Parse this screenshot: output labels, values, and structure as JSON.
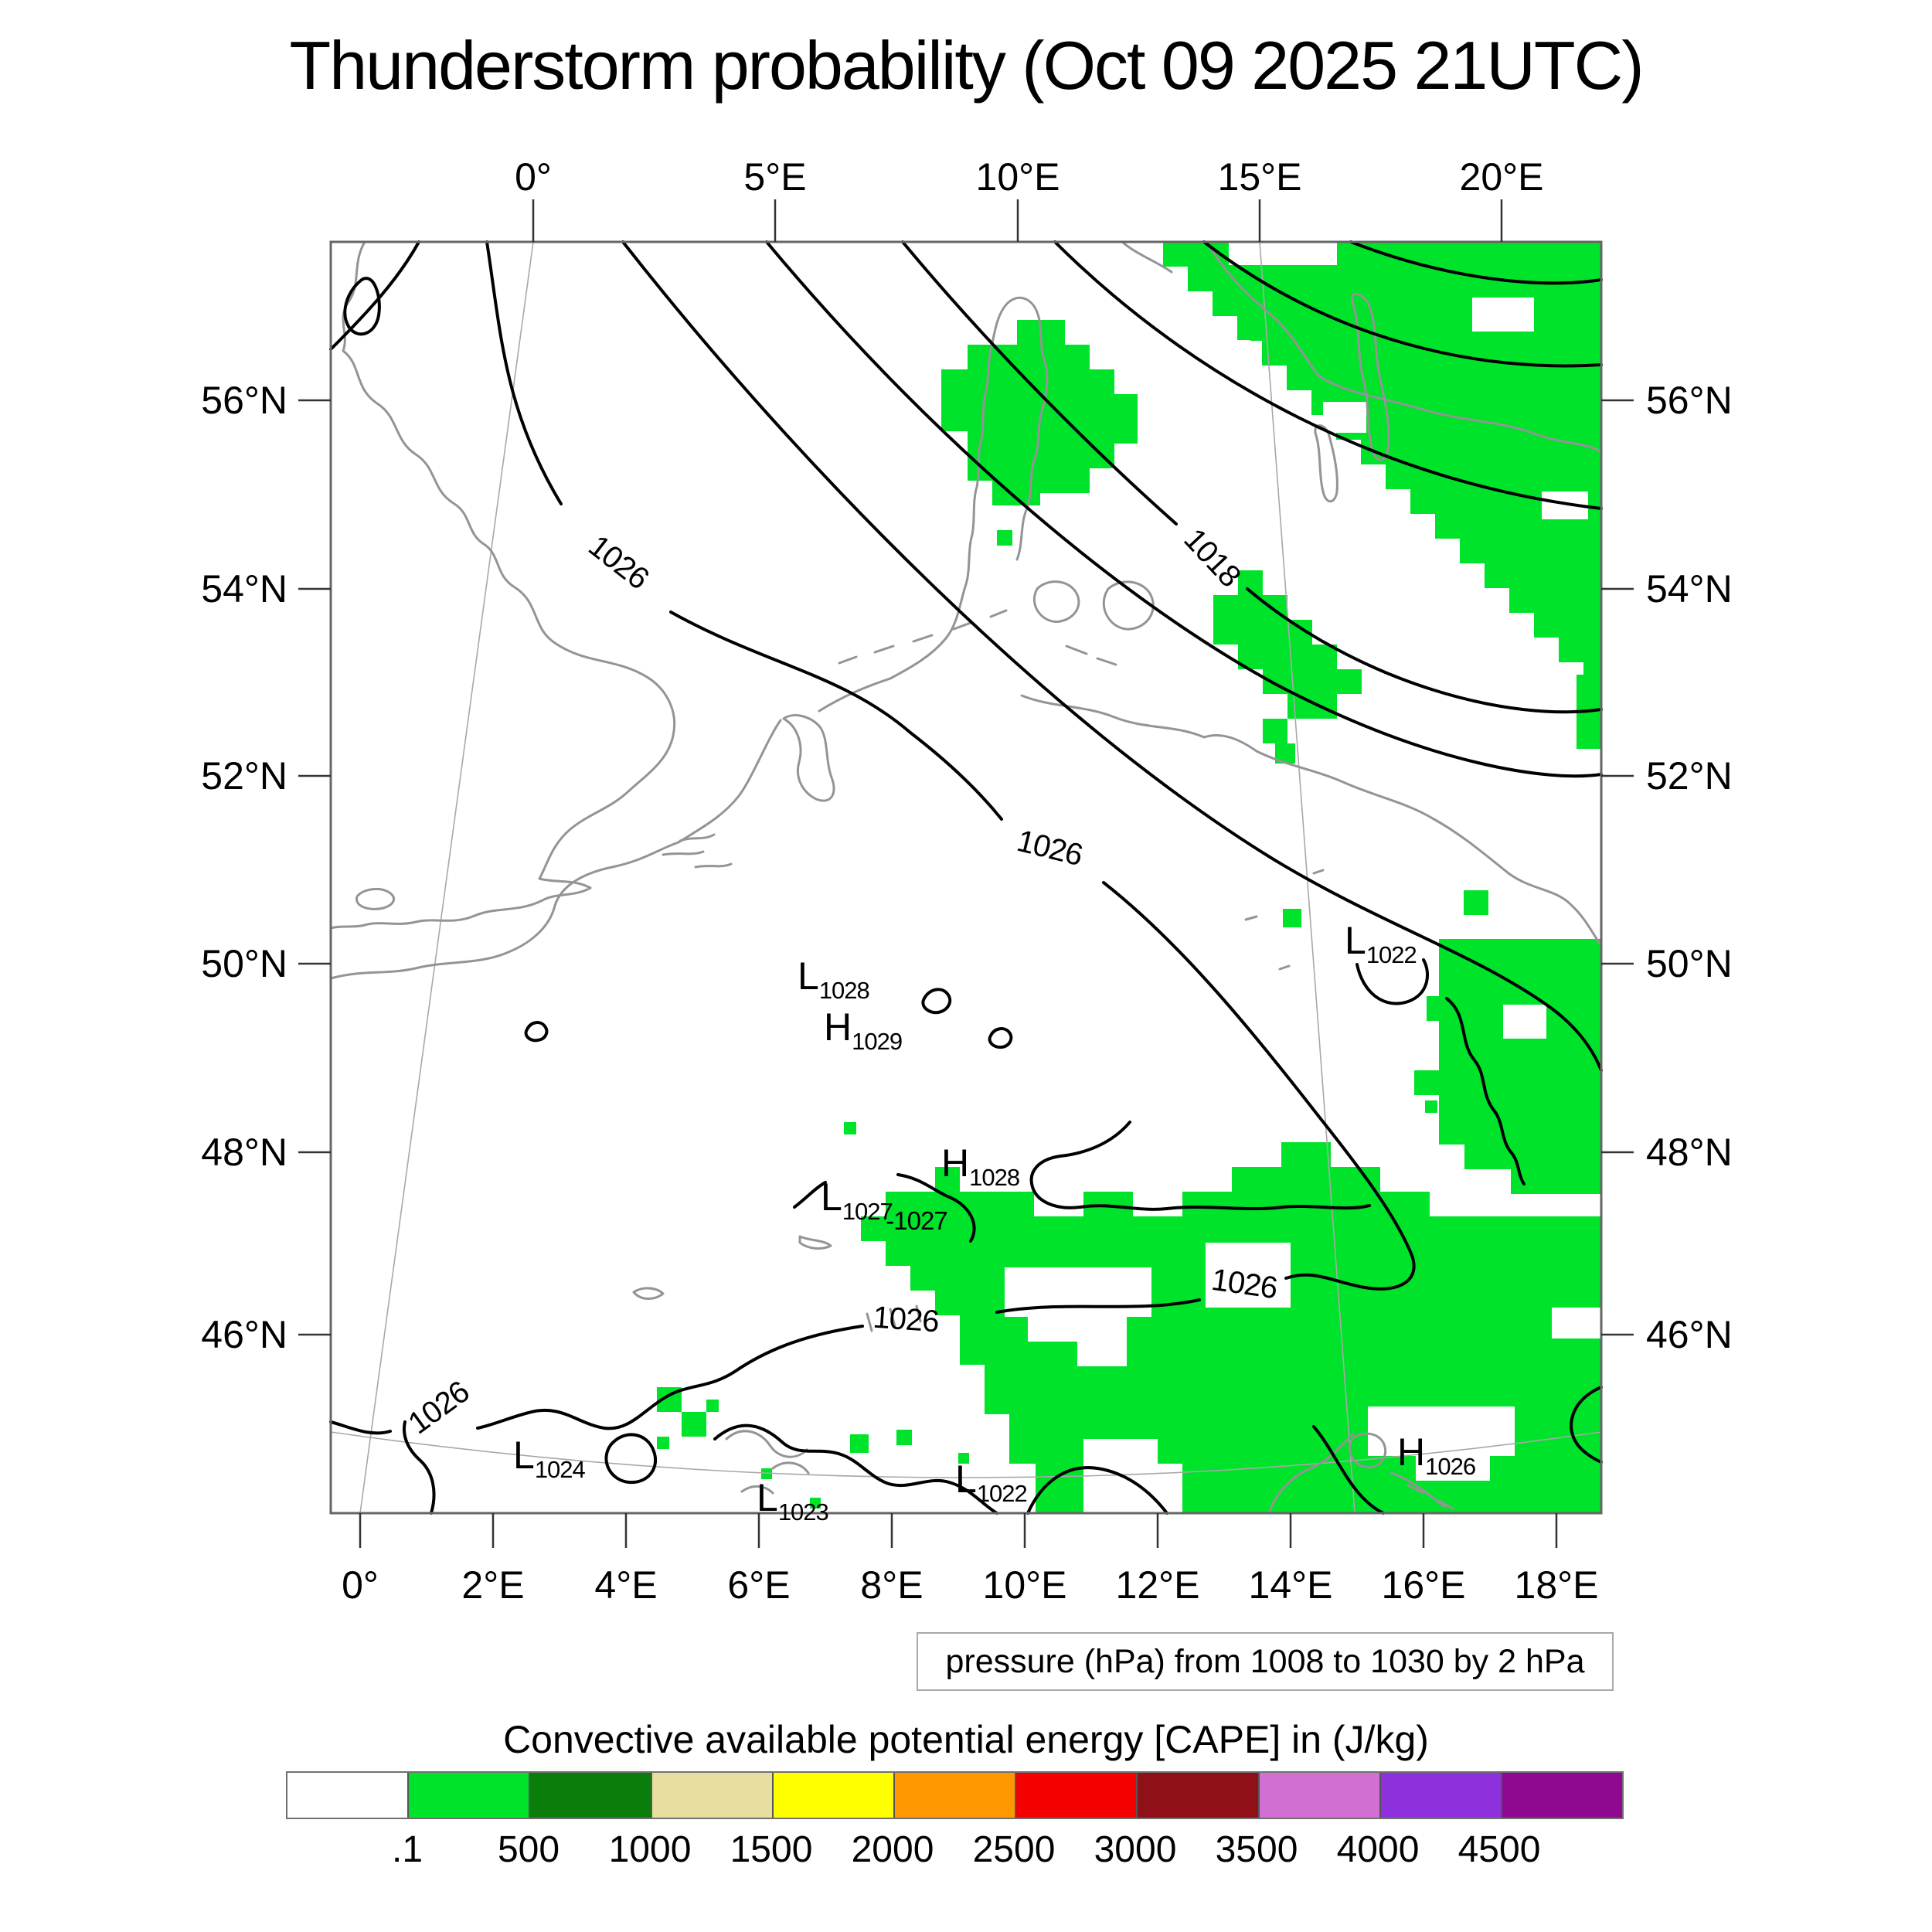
{
  "title": "Thunderstorm probability (Oct 09 2025 21UTC)",
  "axes": {
    "top_labels": [
      "0°",
      "5°E",
      "10°E",
      "15°E",
      "20°E"
    ],
    "bottom_labels": [
      "0°",
      "2°E",
      "4°E",
      "6°E",
      "8°E",
      "10°E",
      "12°E",
      "14°E",
      "16°E",
      "18°E"
    ],
    "left_labels": [
      "56°N",
      "54°N",
      "52°N",
      "50°N",
      "48°N",
      "46°N"
    ],
    "right_labels": [
      "56°N",
      "54°N",
      "52°N",
      "50°N",
      "48°N",
      "46°N"
    ]
  },
  "pressure": {
    "caption": "pressure (hPa) from 1008 to 1030 by 2 hPa",
    "contour_labels": {
      "tl_1026": "1026",
      "ne_1018": "1018",
      "mid_1026": "1026",
      "se_1026": "1026",
      "s_1026": "1026",
      "sw_1026": "1026",
      "small_1027": "-1027"
    },
    "centers": [
      {
        "letter": "L",
        "value": "1028"
      },
      {
        "letter": "H",
        "value": "1029"
      },
      {
        "letter": "L",
        "value": "1022"
      },
      {
        "letter": "H",
        "value": "1028"
      },
      {
        "letter": "L",
        "value": "1027"
      },
      {
        "letter": "L",
        "value": "1024"
      },
      {
        "letter": "L",
        "value": "1023"
      },
      {
        "letter": "L",
        "value": "1022"
      },
      {
        "letter": "H",
        "value": "1026"
      }
    ]
  },
  "colorbar": {
    "title": "Convective available potential energy [CAPE] in (J/kg)",
    "tick_labels": [
      ".1",
      "500",
      "1000",
      "1500",
      "2000",
      "2500",
      "3000",
      "3500",
      "4000",
      "4500"
    ],
    "colors": [
      "#ffffff",
      "#00e32b",
      "#0b7d0b",
      "#e6dfa0",
      "#ffff00",
      "#ff9800",
      "#f50000",
      "#8f1016",
      "#d26fd2",
      "#8e30dc",
      "#8e0890"
    ]
  },
  "map_colors": {
    "cape_green": "#00e32b",
    "coastline": "#949494",
    "isobar": "#000000",
    "graticule": "#a8a8a8"
  }
}
